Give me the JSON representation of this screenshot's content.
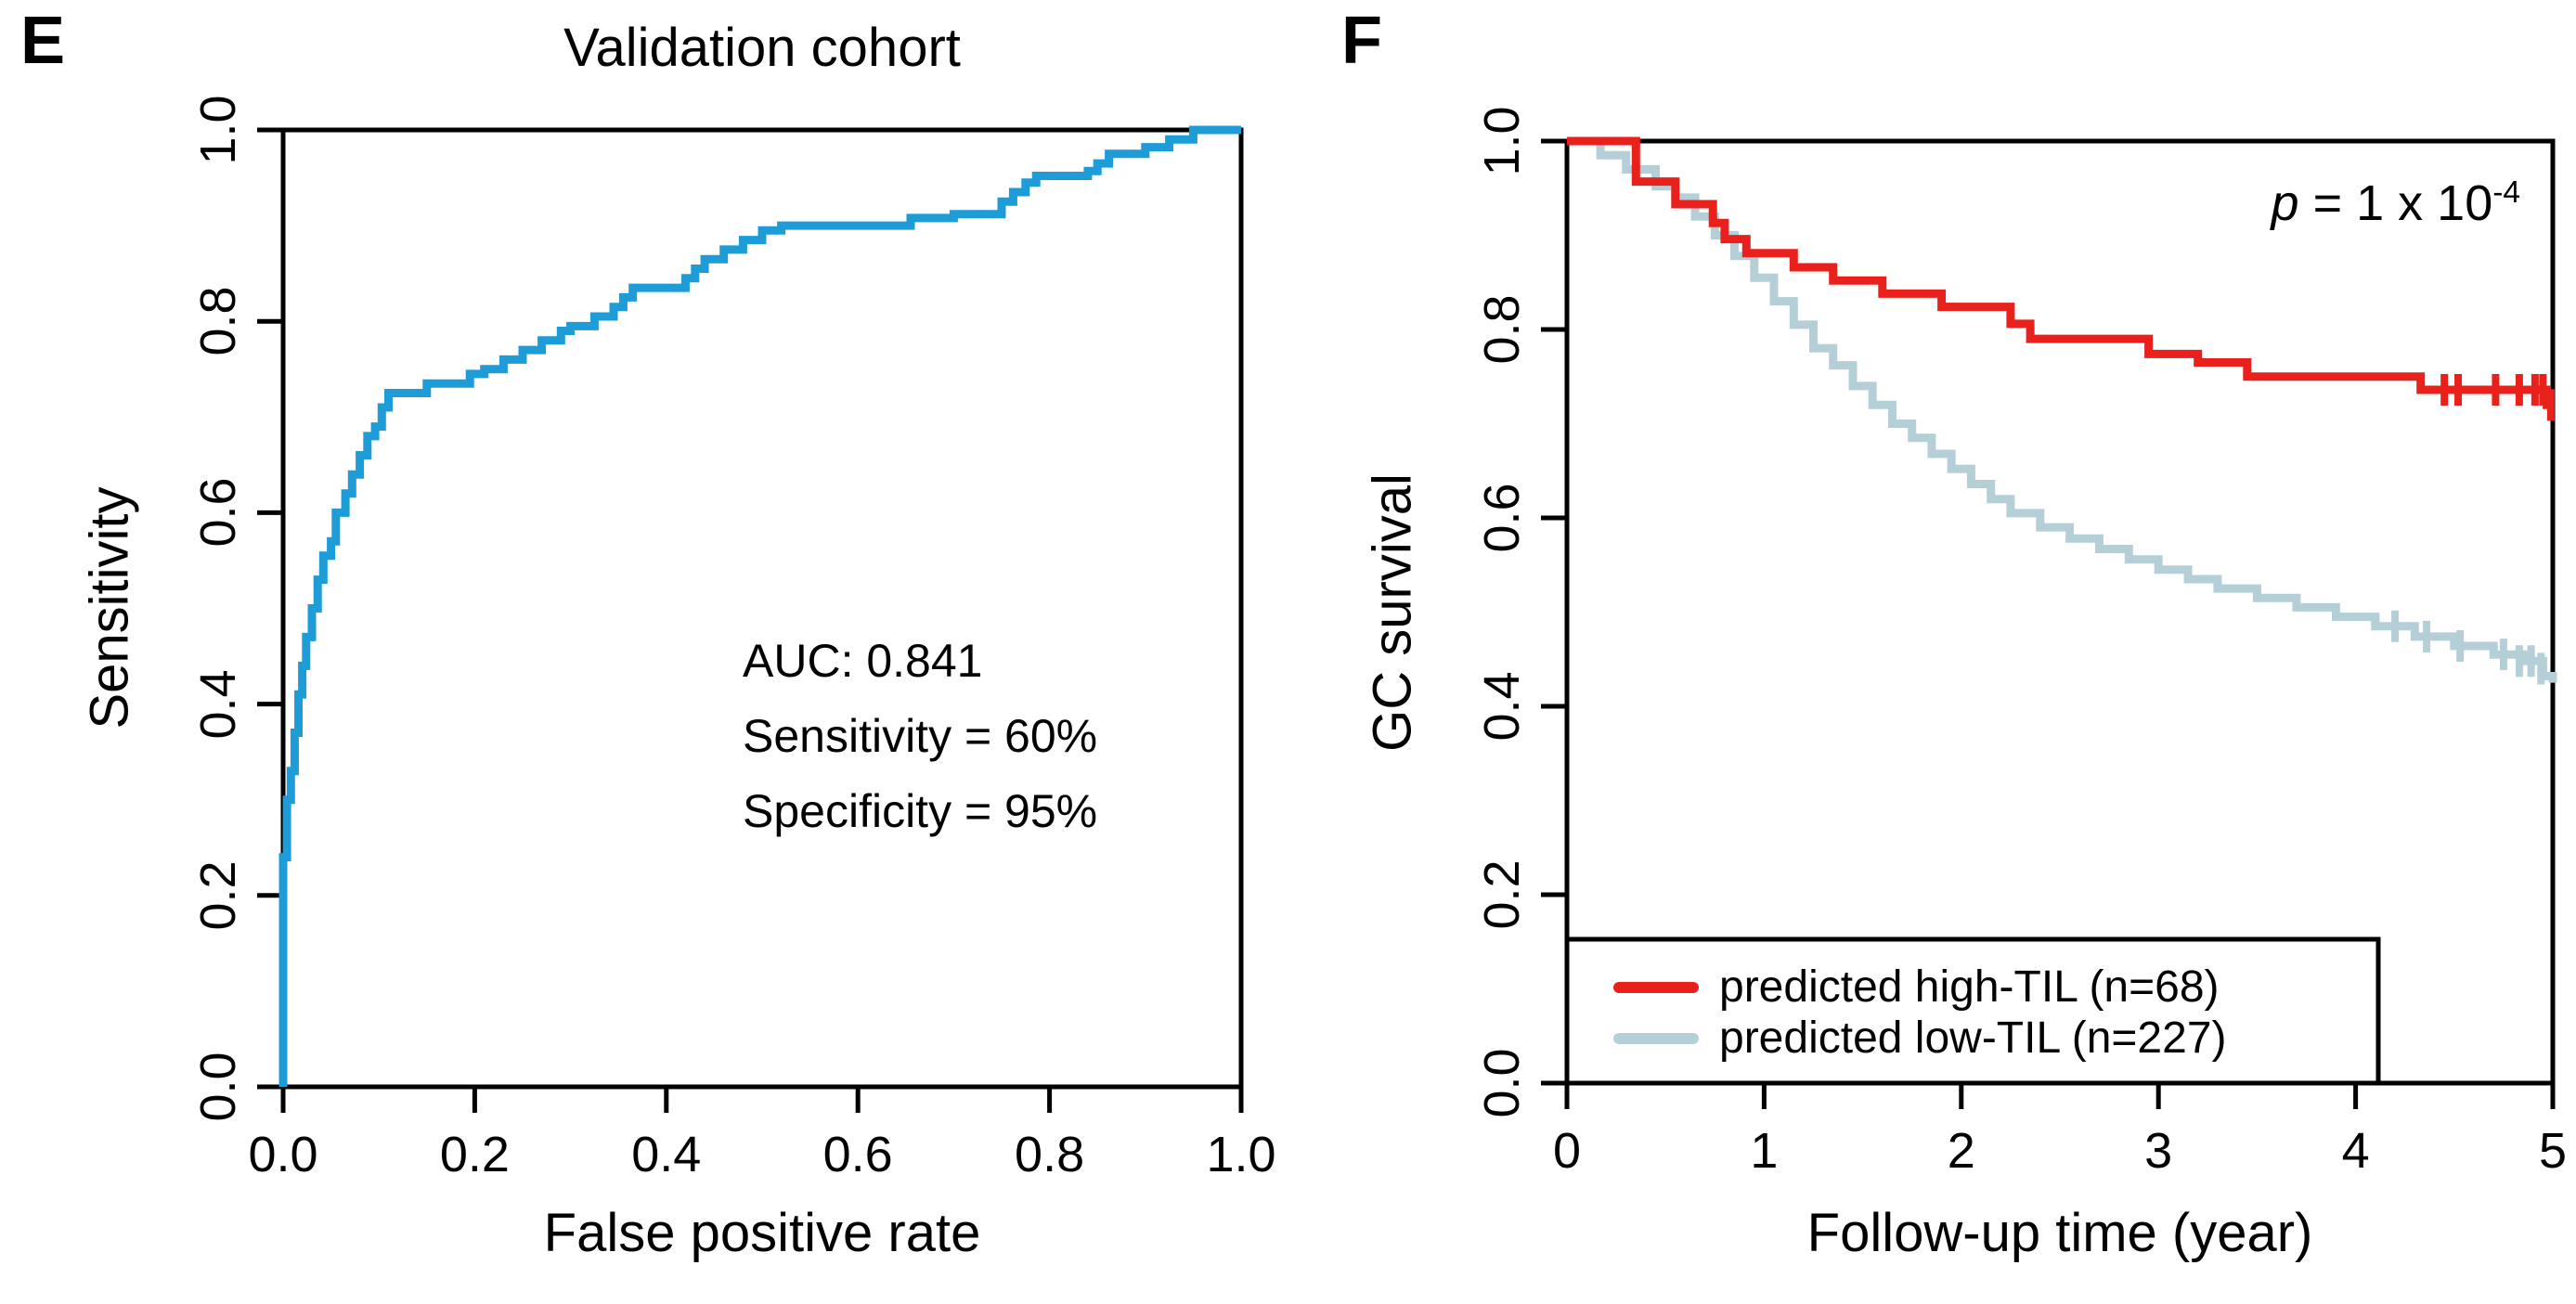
{
  "panel_e": {
    "label": "E",
    "title": "Validation cohort",
    "xlabel": "False positive rate",
    "ylabel": "Sensitivity",
    "annotation": {
      "auc": "AUC: 0.841",
      "sensitivity": "Sensitivity = 60%",
      "specificity": "Specificity = 95%"
    }
  },
  "panel_f": {
    "label": "F",
    "xlabel": "Follow-up time (year)",
    "ylabel": "GC survival",
    "p_value": {
      "var": "p",
      "eq": " = ",
      "mantissa": "1 x 10",
      "exponent": "-4"
    }
  },
  "colors": {
    "roc_curve": "#1e9cd8",
    "high_til": "#e8211d",
    "low_til": "#b5cfd8",
    "axis": "#000000"
  },
  "chart_data": [
    {
      "type": "line",
      "name": "roc-validation-cohort",
      "title": "Validation cohort",
      "xlabel": "False positive rate",
      "ylabel": "Sensitivity",
      "xlim": [
        0,
        1
      ],
      "ylim": [
        0,
        1
      ],
      "xticks": [
        0,
        0.2,
        0.4,
        0.6,
        0.8,
        1.0
      ],
      "xtick_labels": [
        "0.0",
        "0.2",
        "0.4",
        "0.6",
        "0.8",
        "1.0"
      ],
      "yticks": [
        0,
        0.2,
        0.4,
        0.6,
        0.8,
        1.0
      ],
      "ytick_labels": [
        "0.0",
        "0.2",
        "0.4",
        "0.6",
        "0.8",
        "1.0"
      ],
      "grid": false,
      "annotations": [
        "AUC: 0.841",
        "Sensitivity = 60%",
        "Specificity = 95%"
      ],
      "series": [
        {
          "name": "ROC curve",
          "color": "#1e9cd8",
          "step": true,
          "points": [
            [
              0,
              0
            ],
            [
              0,
              0.24
            ],
            [
              0.004,
              0.3
            ],
            [
              0.008,
              0.33
            ],
            [
              0.012,
              0.37
            ],
            [
              0.016,
              0.41
            ],
            [
              0.02,
              0.44
            ],
            [
              0.024,
              0.47
            ],
            [
              0.03,
              0.5
            ],
            [
              0.036,
              0.53
            ],
            [
              0.042,
              0.555
            ],
            [
              0.05,
              0.57
            ],
            [
              0.055,
              0.6
            ],
            [
              0.065,
              0.62
            ],
            [
              0.072,
              0.64
            ],
            [
              0.08,
              0.66
            ],
            [
              0.088,
              0.68
            ],
            [
              0.096,
              0.69
            ],
            [
              0.103,
              0.71
            ],
            [
              0.11,
              0.725
            ],
            [
              0.15,
              0.735
            ],
            [
              0.195,
              0.745
            ],
            [
              0.21,
              0.75
            ],
            [
              0.23,
              0.76
            ],
            [
              0.25,
              0.77
            ],
            [
              0.27,
              0.78
            ],
            [
              0.29,
              0.79
            ],
            [
              0.3,
              0.795
            ],
            [
              0.325,
              0.805
            ],
            [
              0.345,
              0.815
            ],
            [
              0.355,
              0.825
            ],
            [
              0.365,
              0.835
            ],
            [
              0.42,
              0.845
            ],
            [
              0.43,
              0.855
            ],
            [
              0.44,
              0.865
            ],
            [
              0.46,
              0.875
            ],
            [
              0.48,
              0.885
            ],
            [
              0.5,
              0.895
            ],
            [
              0.52,
              0.9
            ],
            [
              0.655,
              0.908
            ],
            [
              0.7,
              0.912
            ],
            [
              0.75,
              0.925
            ],
            [
              0.762,
              0.935
            ],
            [
              0.775,
              0.945
            ],
            [
              0.786,
              0.952
            ],
            [
              0.84,
              0.957
            ],
            [
              0.85,
              0.965
            ],
            [
              0.862,
              0.975
            ],
            [
              0.9,
              0.982
            ],
            [
              0.925,
              0.99
            ],
            [
              0.95,
              1.0
            ],
            [
              1,
              1
            ]
          ]
        }
      ]
    },
    {
      "type": "line",
      "name": "kaplan-meier-gc-survival",
      "xlabel": "Follow-up time (year)",
      "ylabel": "GC survival",
      "xlim": [
        0,
        5
      ],
      "ylim": [
        0,
        1
      ],
      "xticks": [
        0,
        1,
        2,
        3,
        4,
        5
      ],
      "xtick_labels": [
        "0",
        "1",
        "2",
        "3",
        "4",
        "5"
      ],
      "yticks": [
        0,
        0.2,
        0.4,
        0.6,
        0.8,
        1.0
      ],
      "ytick_labels": [
        "0.0",
        "0.2",
        "0.4",
        "0.6",
        "0.8",
        "1.0"
      ],
      "grid": false,
      "p_value_text": "p = 1 x 10^-4",
      "legend_position": "bottom-left",
      "series": [
        {
          "name": "predicted high-TIL (n=68)",
          "color": "#e8211d",
          "step": true,
          "points": [
            [
              0,
              1.0
            ],
            [
              0.35,
              0.957
            ],
            [
              0.55,
              0.933
            ],
            [
              0.74,
              0.913
            ],
            [
              0.8,
              0.896
            ],
            [
              0.91,
              0.881
            ],
            [
              1.15,
              0.866
            ],
            [
              1.35,
              0.852
            ],
            [
              1.6,
              0.838
            ],
            [
              1.9,
              0.824
            ],
            [
              2.25,
              0.806
            ],
            [
              2.35,
              0.79
            ],
            [
              2.95,
              0.774
            ],
            [
              3.2,
              0.765
            ],
            [
              3.45,
              0.75
            ],
            [
              4.33,
              0.736
            ],
            [
              4.97,
              0.72
            ],
            [
              5,
              0.72
            ]
          ],
          "censors": [
            [
              4.45,
              0.736
            ],
            [
              4.52,
              0.736
            ],
            [
              4.71,
              0.736
            ],
            [
              4.83,
              0.736
            ],
            [
              4.91,
              0.736
            ],
            [
              4.95,
              0.736
            ],
            [
              4.99,
              0.72
            ]
          ]
        },
        {
          "name": "predicted low-TIL (n=227)",
          "color": "#b5cfd8",
          "step": true,
          "points": [
            [
              0,
              1.0
            ],
            [
              0.17,
              0.985
            ],
            [
              0.3,
              0.97
            ],
            [
              0.45,
              0.952
            ],
            [
              0.55,
              0.94
            ],
            [
              0.65,
              0.92
            ],
            [
              0.75,
              0.9
            ],
            [
              0.85,
              0.878
            ],
            [
              0.95,
              0.855
            ],
            [
              1.05,
              0.83
            ],
            [
              1.15,
              0.805
            ],
            [
              1.25,
              0.78
            ],
            [
              1.35,
              0.762
            ],
            [
              1.45,
              0.74
            ],
            [
              1.55,
              0.72
            ],
            [
              1.65,
              0.7
            ],
            [
              1.75,
              0.685
            ],
            [
              1.85,
              0.668
            ],
            [
              1.95,
              0.652
            ],
            [
              2.05,
              0.636
            ],
            [
              2.15,
              0.62
            ],
            [
              2.25,
              0.605
            ],
            [
              2.4,
              0.59
            ],
            [
              2.55,
              0.578
            ],
            [
              2.7,
              0.567
            ],
            [
              2.85,
              0.556
            ],
            [
              3.0,
              0.545
            ],
            [
              3.15,
              0.535
            ],
            [
              3.3,
              0.525
            ],
            [
              3.5,
              0.515
            ],
            [
              3.7,
              0.505
            ],
            [
              3.9,
              0.495
            ],
            [
              4.1,
              0.485
            ],
            [
              4.3,
              0.474
            ],
            [
              4.5,
              0.464
            ],
            [
              4.7,
              0.455
            ],
            [
              4.85,
              0.448
            ],
            [
              4.95,
              0.432
            ],
            [
              5,
              0.425
            ]
          ],
          "censors": [
            [
              4.2,
              0.485
            ],
            [
              4.36,
              0.474
            ],
            [
              4.53,
              0.464
            ],
            [
              4.75,
              0.455
            ],
            [
              4.83,
              0.448
            ],
            [
              4.89,
              0.448
            ],
            [
              4.94,
              0.44
            ]
          ]
        }
      ]
    }
  ]
}
